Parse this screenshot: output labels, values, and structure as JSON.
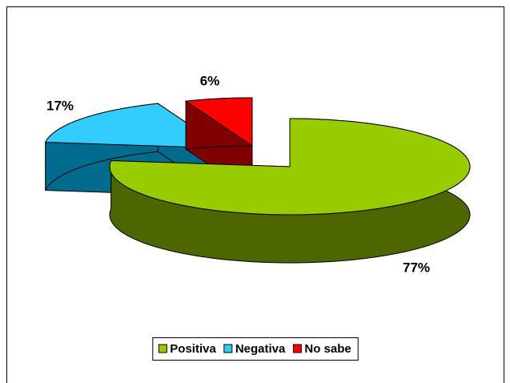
{
  "chart_data": {
    "type": "pie3d",
    "categories": [
      "Positiva",
      "Negativa",
      "No sabe"
    ],
    "values": [
      77,
      17,
      6
    ],
    "value_labels": [
      "77%",
      "17%",
      "6%"
    ],
    "colors": [
      "#99cc00",
      "#33ccff",
      "#ff0000"
    ],
    "side_colors": [
      "#4d6600",
      "#006b8c",
      "#800000"
    ],
    "legend": "bottom"
  }
}
